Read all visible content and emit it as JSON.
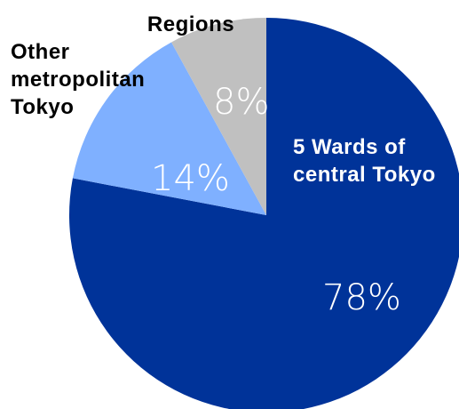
{
  "chart_data": {
    "type": "pie",
    "categories": [
      "5 Wards of central Tokyo",
      "Other metropolitan Tokyo",
      "Regions"
    ],
    "values": [
      78,
      14,
      8
    ],
    "value_labels": [
      "78%",
      "14%",
      "8%"
    ],
    "colors": [
      "#003399",
      "#7fb0ff",
      "#c0c0c0"
    ]
  }
}
